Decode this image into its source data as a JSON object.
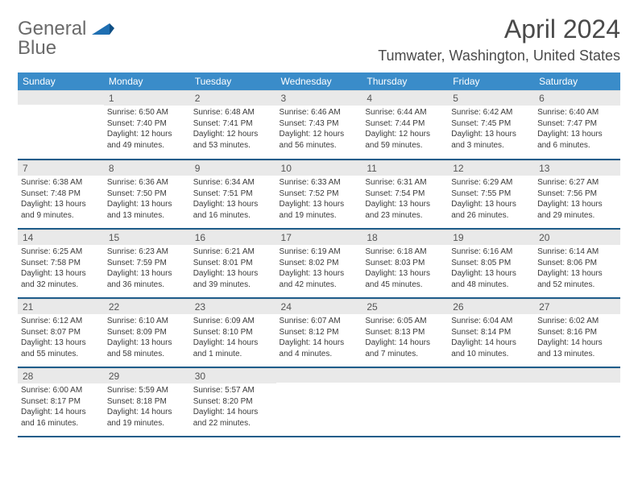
{
  "logo": {
    "word1": "General",
    "word2": "Blue"
  },
  "header": {
    "month": "April 2024",
    "location": "Tumwater, Washington, United States"
  },
  "colors": {
    "header_bg": "#3a8cc9",
    "header_text": "#ffffff",
    "daynum_bg": "#e9e9e9",
    "row_border": "#1f5d8a",
    "logo_gray": "#6a6a6a",
    "logo_blue": "#1f6fb2"
  },
  "days_of_week": [
    "Sunday",
    "Monday",
    "Tuesday",
    "Wednesday",
    "Thursday",
    "Friday",
    "Saturday"
  ],
  "weeks": [
    [
      null,
      {
        "n": "1",
        "sr": "6:50 AM",
        "ss": "7:40 PM",
        "dl": "12 hours and 49 minutes."
      },
      {
        "n": "2",
        "sr": "6:48 AM",
        "ss": "7:41 PM",
        "dl": "12 hours and 53 minutes."
      },
      {
        "n": "3",
        "sr": "6:46 AM",
        "ss": "7:43 PM",
        "dl": "12 hours and 56 minutes."
      },
      {
        "n": "4",
        "sr": "6:44 AM",
        "ss": "7:44 PM",
        "dl": "12 hours and 59 minutes."
      },
      {
        "n": "5",
        "sr": "6:42 AM",
        "ss": "7:45 PM",
        "dl": "13 hours and 3 minutes."
      },
      {
        "n": "6",
        "sr": "6:40 AM",
        "ss": "7:47 PM",
        "dl": "13 hours and 6 minutes."
      }
    ],
    [
      {
        "n": "7",
        "sr": "6:38 AM",
        "ss": "7:48 PM",
        "dl": "13 hours and 9 minutes."
      },
      {
        "n": "8",
        "sr": "6:36 AM",
        "ss": "7:50 PM",
        "dl": "13 hours and 13 minutes."
      },
      {
        "n": "9",
        "sr": "6:34 AM",
        "ss": "7:51 PM",
        "dl": "13 hours and 16 minutes."
      },
      {
        "n": "10",
        "sr": "6:33 AM",
        "ss": "7:52 PM",
        "dl": "13 hours and 19 minutes."
      },
      {
        "n": "11",
        "sr": "6:31 AM",
        "ss": "7:54 PM",
        "dl": "13 hours and 23 minutes."
      },
      {
        "n": "12",
        "sr": "6:29 AM",
        "ss": "7:55 PM",
        "dl": "13 hours and 26 minutes."
      },
      {
        "n": "13",
        "sr": "6:27 AM",
        "ss": "7:56 PM",
        "dl": "13 hours and 29 minutes."
      }
    ],
    [
      {
        "n": "14",
        "sr": "6:25 AM",
        "ss": "7:58 PM",
        "dl": "13 hours and 32 minutes."
      },
      {
        "n": "15",
        "sr": "6:23 AM",
        "ss": "7:59 PM",
        "dl": "13 hours and 36 minutes."
      },
      {
        "n": "16",
        "sr": "6:21 AM",
        "ss": "8:01 PM",
        "dl": "13 hours and 39 minutes."
      },
      {
        "n": "17",
        "sr": "6:19 AM",
        "ss": "8:02 PM",
        "dl": "13 hours and 42 minutes."
      },
      {
        "n": "18",
        "sr": "6:18 AM",
        "ss": "8:03 PM",
        "dl": "13 hours and 45 minutes."
      },
      {
        "n": "19",
        "sr": "6:16 AM",
        "ss": "8:05 PM",
        "dl": "13 hours and 48 minutes."
      },
      {
        "n": "20",
        "sr": "6:14 AM",
        "ss": "8:06 PM",
        "dl": "13 hours and 52 minutes."
      }
    ],
    [
      {
        "n": "21",
        "sr": "6:12 AM",
        "ss": "8:07 PM",
        "dl": "13 hours and 55 minutes."
      },
      {
        "n": "22",
        "sr": "6:10 AM",
        "ss": "8:09 PM",
        "dl": "13 hours and 58 minutes."
      },
      {
        "n": "23",
        "sr": "6:09 AM",
        "ss": "8:10 PM",
        "dl": "14 hours and 1 minute."
      },
      {
        "n": "24",
        "sr": "6:07 AM",
        "ss": "8:12 PM",
        "dl": "14 hours and 4 minutes."
      },
      {
        "n": "25",
        "sr": "6:05 AM",
        "ss": "8:13 PM",
        "dl": "14 hours and 7 minutes."
      },
      {
        "n": "26",
        "sr": "6:04 AM",
        "ss": "8:14 PM",
        "dl": "14 hours and 10 minutes."
      },
      {
        "n": "27",
        "sr": "6:02 AM",
        "ss": "8:16 PM",
        "dl": "14 hours and 13 minutes."
      }
    ],
    [
      {
        "n": "28",
        "sr": "6:00 AM",
        "ss": "8:17 PM",
        "dl": "14 hours and 16 minutes."
      },
      {
        "n": "29",
        "sr": "5:59 AM",
        "ss": "8:18 PM",
        "dl": "14 hours and 19 minutes."
      },
      {
        "n": "30",
        "sr": "5:57 AM",
        "ss": "8:20 PM",
        "dl": "14 hours and 22 minutes."
      },
      null,
      null,
      null,
      null
    ]
  ],
  "labels": {
    "sunrise": "Sunrise:",
    "sunset": "Sunset:",
    "daylight": "Daylight:"
  }
}
